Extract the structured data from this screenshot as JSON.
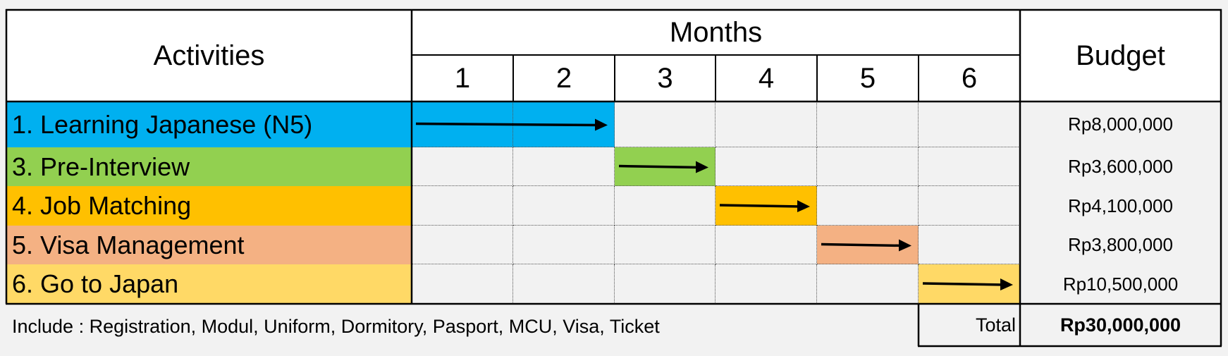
{
  "header": {
    "activities_label": "Activities",
    "months_label": "Months",
    "budget_label": "Budget",
    "months": [
      "1",
      "2",
      "3",
      "4",
      "5",
      "6"
    ]
  },
  "rows": [
    {
      "activity": "1. Learning Japanese (N5)",
      "color": "#00b0f0",
      "start_month": 1,
      "end_month": 2,
      "budget": "Rp8,000,000"
    },
    {
      "activity": "3. Pre-Interview",
      "color": "#92d050",
      "start_month": 3,
      "end_month": 3,
      "budget": "Rp3,600,000"
    },
    {
      "activity": "4. Job Matching",
      "color": "#ffc000",
      "start_month": 4,
      "end_month": 4,
      "budget": "Rp4,100,000"
    },
    {
      "activity": "5. Visa Management",
      "color": "#f4b183",
      "start_month": 5,
      "end_month": 5,
      "budget": "Rp3,800,000"
    },
    {
      "activity": "6. Go to Japan",
      "color": "#ffd966",
      "start_month": 6,
      "end_month": 6,
      "budget": "Rp10,500,000"
    }
  ],
  "footer": {
    "note": "Include : Registration, Modul, Uniform, Dormitory, Pasport, MCU, Visa, Ticket",
    "total_label": "Total",
    "total_value": "Rp30,000,000"
  },
  "colors": {
    "background": "#f2f2f2",
    "header_background": "#ffffff",
    "empty_cell": "#f2f2f2"
  }
}
